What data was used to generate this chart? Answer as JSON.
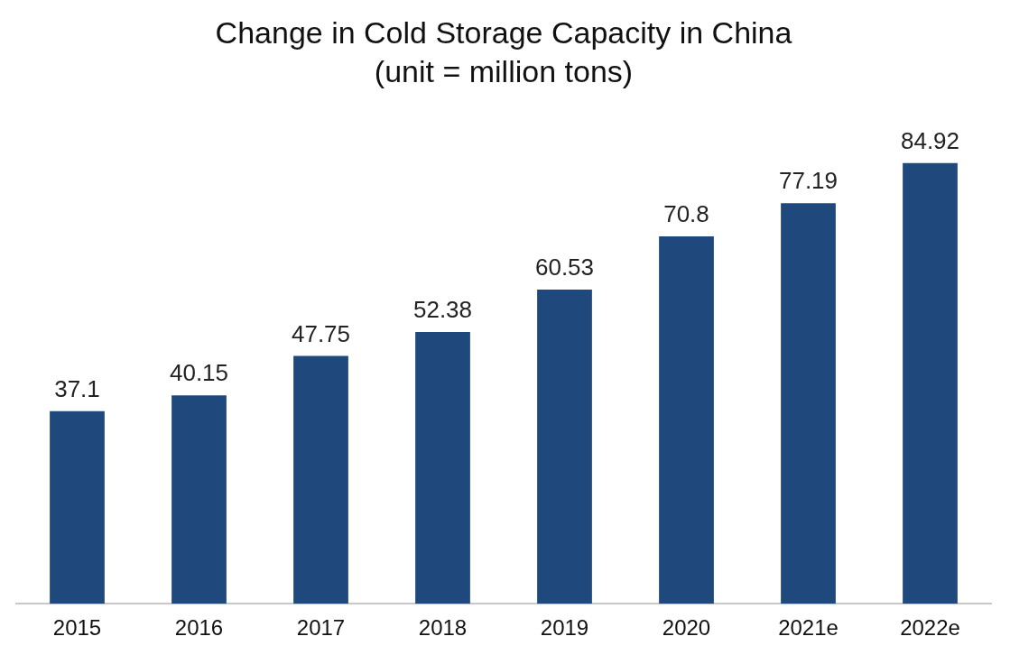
{
  "chart_data": {
    "type": "bar",
    "title": "Change in Cold Storage Capacity in China",
    "subtitle": "(unit = million tons)",
    "categories": [
      "2015",
      "2016",
      "2017",
      "2018",
      "2019",
      "2020",
      "2021e",
      "2022e"
    ],
    "values": [
      37.1,
      40.15,
      47.75,
      52.38,
      60.53,
      70.8,
      77.19,
      84.92
    ],
    "color": "#1f497d",
    "data_labels": true,
    "grid": false,
    "legend": false,
    "tick_labels": "x"
  }
}
